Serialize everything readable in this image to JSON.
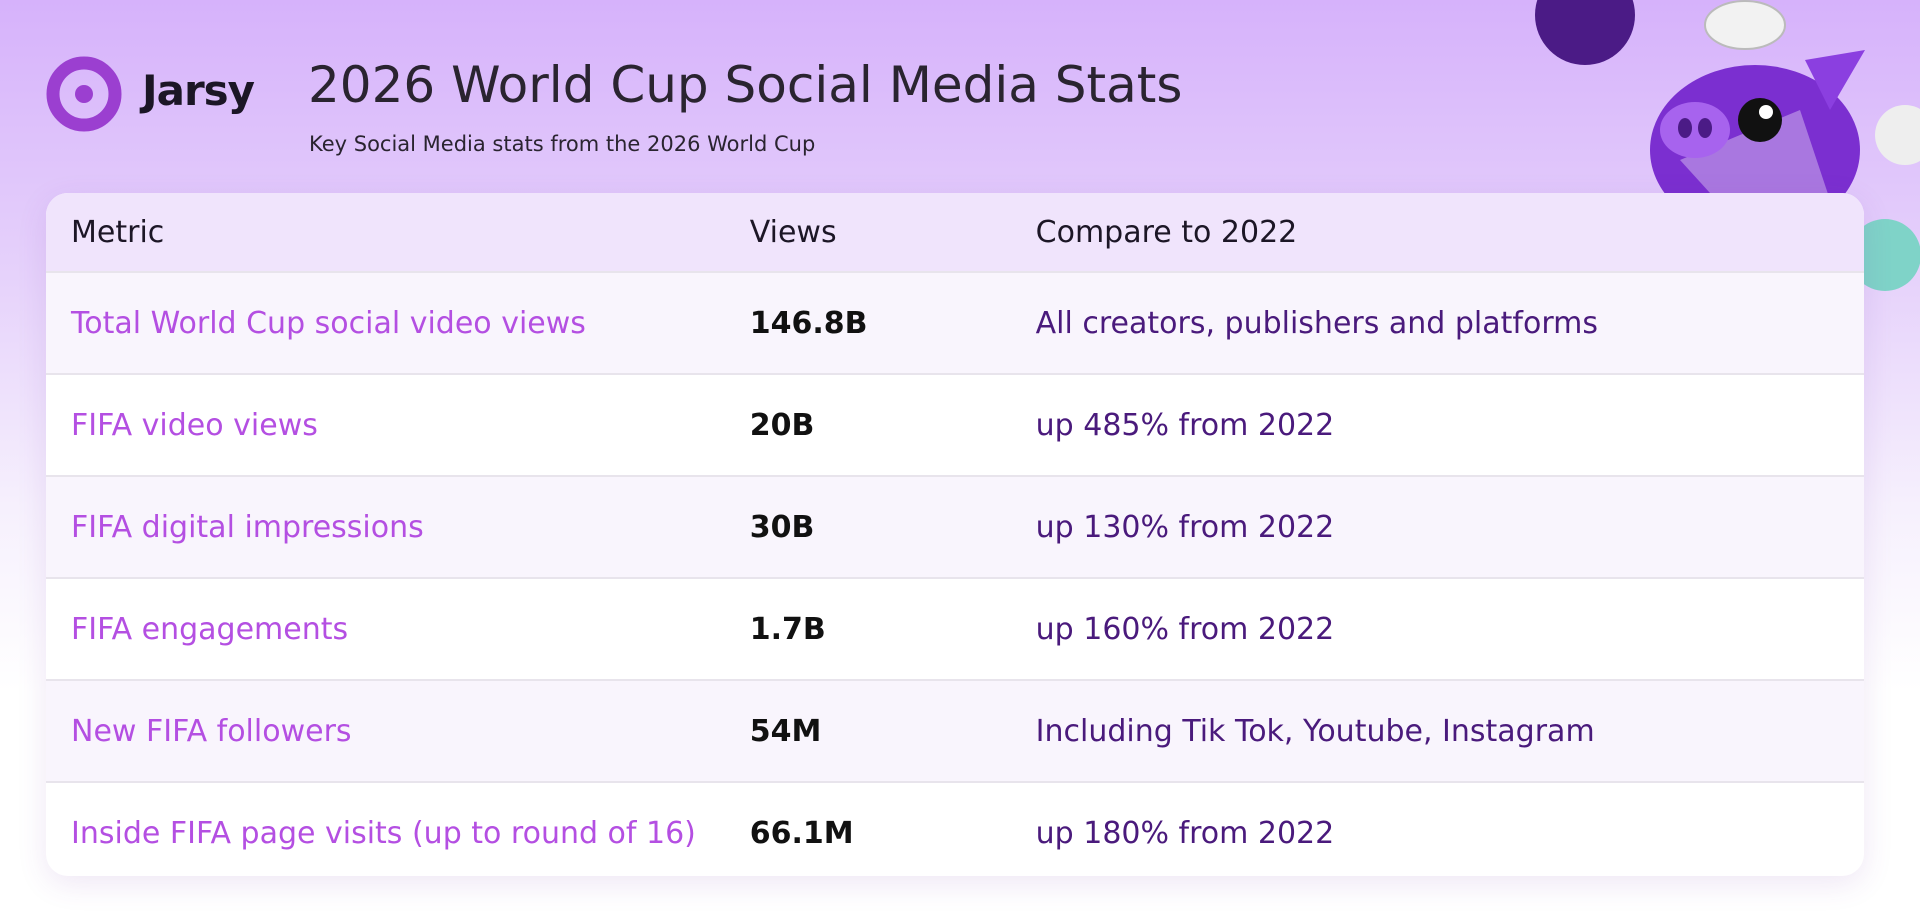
{
  "header": {
    "logo_text": "Jarsy",
    "title": "2026 World Cup Social Media Stats",
    "subtitle": "Key Social Media stats from the 2026 World Cup"
  },
  "table": {
    "columns": [
      "Metric",
      "Views",
      "Compare to 2022"
    ],
    "rows": [
      [
        "Total World Cup social video views",
        "146.8B",
        "All creators, publishers and platforms"
      ],
      [
        "FIFA video views",
        "20B",
        "up 485% from 2022"
      ],
      [
        "FIFA digital impressions",
        "30B",
        "up 130% from 2022"
      ],
      [
        "FIFA engagements",
        "1.7B",
        "up 160% from 2022"
      ],
      [
        "New FIFA followers",
        "54M",
        "Including Tik Tok, Youtube, Instagram"
      ],
      [
        "Inside FIFA page visits (up to round of 16)",
        "66.1M",
        "up 180% from 2022"
      ]
    ]
  }
}
